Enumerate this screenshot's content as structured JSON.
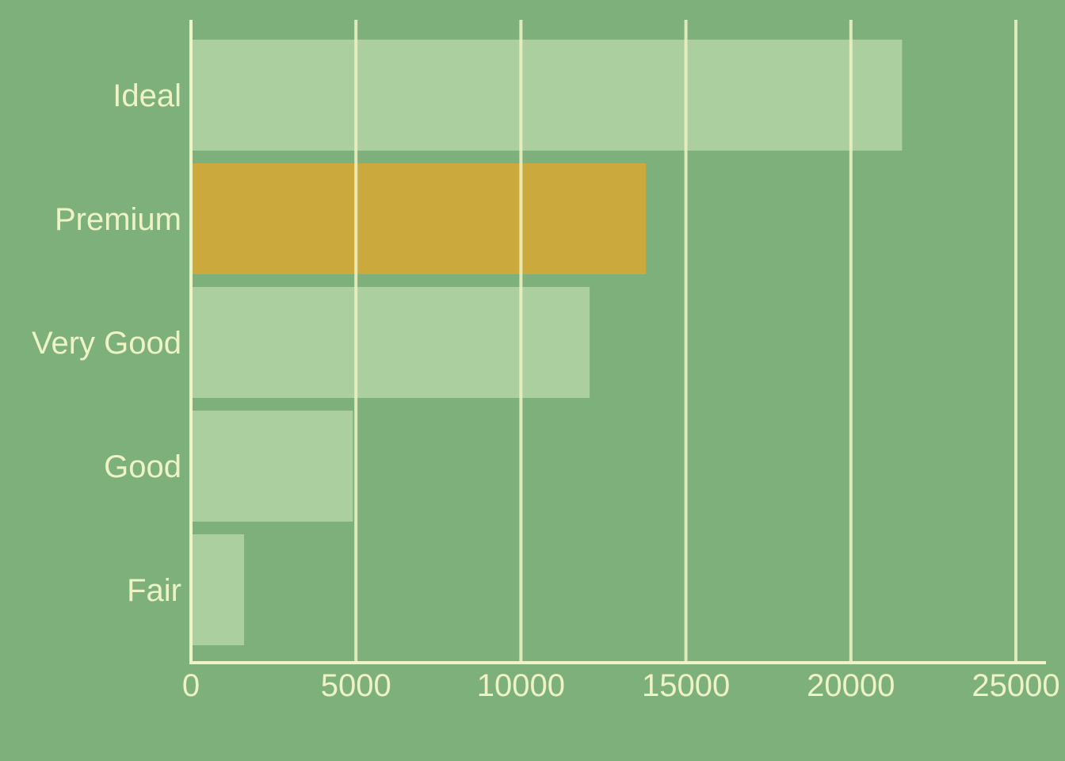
{
  "chart_data": {
    "type": "bar",
    "orientation": "horizontal",
    "categories": [
      "Ideal",
      "Premium",
      "Very Good",
      "Good",
      "Fair"
    ],
    "values": [
      21551,
      13791,
      12082,
      4906,
      1610
    ],
    "highlight_category": "Premium",
    "xlim": [
      0,
      25000
    ],
    "x_ticks": [
      "0",
      "5000",
      "10000",
      "15000",
      "20000",
      "25000"
    ],
    "grid": "vertical",
    "title": "",
    "xlabel": "",
    "ylabel": ""
  },
  "colors": {
    "background": "#7eb07c",
    "bar": "#abcf9f",
    "bar_highlight": "#cba93c",
    "axis_text": "#eef3c6",
    "grid": "#f0f3c5"
  }
}
